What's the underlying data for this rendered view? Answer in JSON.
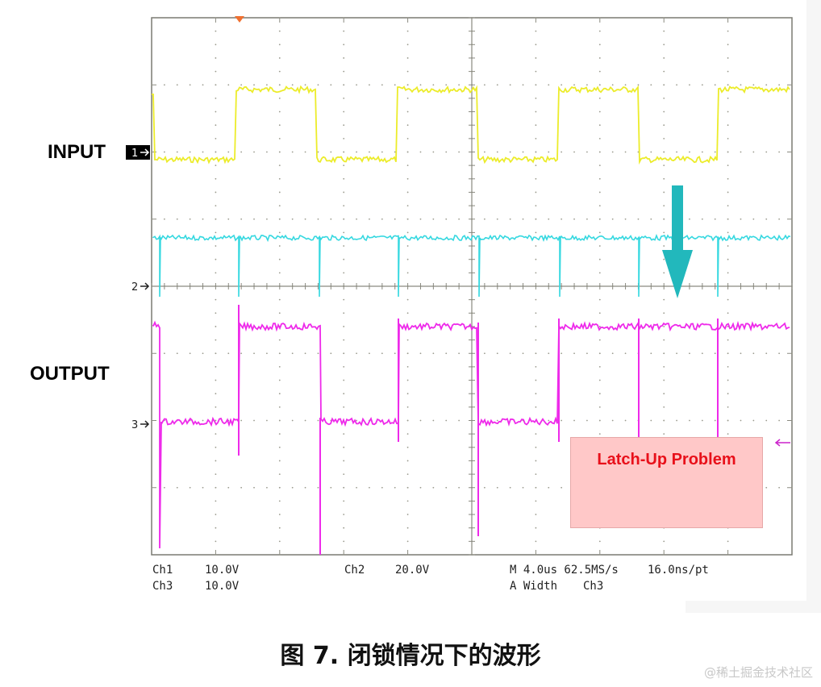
{
  "chart_data": {
    "type": "line",
    "channels": [
      {
        "name": "INPUT",
        "marker": "1",
        "color": "#ecec2a"
      },
      {
        "name": "",
        "marker": "2",
        "color": "#35d8e0"
      },
      {
        "name": "OUTPUT",
        "marker": "3",
        "color": "#ee2aea"
      }
    ],
    "x_units": "us",
    "x_range": [
      0,
      40
    ],
    "grid": true,
    "divisions": {
      "x": 10,
      "y": 8
    }
  },
  "labels": {
    "input": "INPUT",
    "output": "OUTPUT",
    "marker1": "1",
    "marker2": "2",
    "marker3": "3"
  },
  "scale_readout": {
    "ch1": "Ch1",
    "ch1_scale": "10.0V",
    "ch3": "Ch3",
    "ch3_scale": "10.0V",
    "ch2": "Ch2",
    "ch2_scale": "20.0V",
    "timebase": "M 4.0us 62.5MS/s",
    "resolution": "16.0ns/pt",
    "trigger": "A  Width",
    "trigger_source": "Ch3"
  },
  "annotation": "Latch-Up Problem",
  "caption": "图 7. 闭锁情况下的波形",
  "watermark": "@稀土掘金技术社区"
}
